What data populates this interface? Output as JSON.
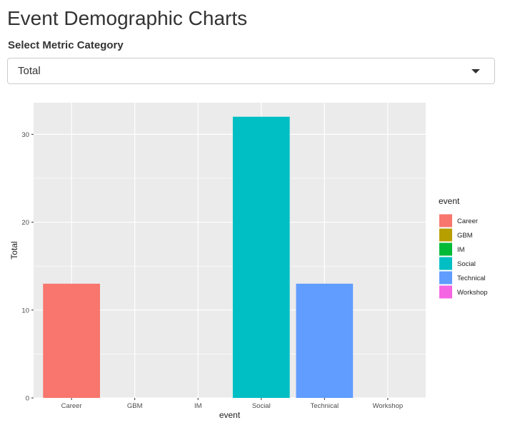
{
  "page": {
    "title": "Event Demographic Charts"
  },
  "metric_select": {
    "label": "Select Metric Category",
    "selected": "Total",
    "caret_icon": "caret-down-icon"
  },
  "chart_data": {
    "type": "bar",
    "title": "",
    "xlabel": "event",
    "ylabel": "Total",
    "categories": [
      "Career",
      "GBM",
      "IM",
      "Social",
      "Technical",
      "Workshop"
    ],
    "values": [
      13,
      0,
      0,
      32,
      13,
      0
    ],
    "ylim": [
      0,
      33.6
    ],
    "yticks": [
      0,
      10,
      20,
      30
    ],
    "ytick_labels": [
      "0",
      "10",
      "20",
      "30"
    ],
    "grid": true,
    "panel_background": "#EBEBEB",
    "gridline_color": "#FFFFFF",
    "colors": [
      "#F8766D",
      "#B79F00",
      "#00BA38",
      "#00BFC4",
      "#619CFF",
      "#F564E3"
    ],
    "legend": {
      "title": "event",
      "placement": "right",
      "entries": [
        "Career",
        "GBM",
        "IM",
        "Social",
        "Technical",
        "Workshop"
      ]
    }
  }
}
